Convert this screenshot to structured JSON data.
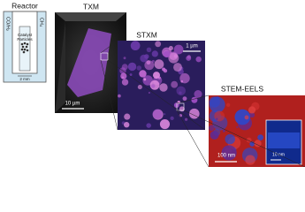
{
  "reactor": {
    "title": "Reactor",
    "inlet": "CO/H₂",
    "outlet": "CH₄",
    "catalyst_label": [
      "Catalyst",
      "Particles"
    ],
    "scale": "2 mm"
  },
  "panels": [
    {
      "title": "TXM",
      "scale": "10 µm"
    },
    {
      "title": "STXM",
      "scale": "1 µm"
    },
    {
      "title": "STEM-EELS",
      "scale": "100 nm",
      "inset_scale": "10 nm"
    }
  ]
}
